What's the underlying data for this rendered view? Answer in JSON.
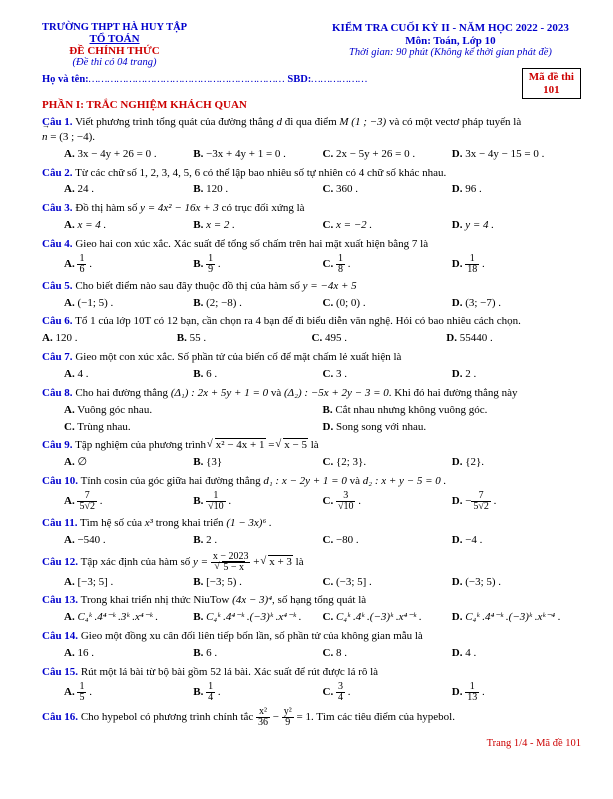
{
  "colors": {
    "blue": "#0000cc",
    "red": "#cc0000",
    "black": "#000000",
    "bg": "#ffffff"
  },
  "fontsizes": {
    "body_pt": 11,
    "small_pt": 10.5
  },
  "header": {
    "school": "TRƯỜNG THPT HÀ HUY TẬP",
    "dept": "TỔ TOÁN",
    "official": "ĐỀ CHÍNH THỨC",
    "pages_note": "(Đề thi có 04 trang)",
    "exam": "KIỂM TRA CUỐI KỲ II - NĂM HỌC 2022 - 2023",
    "subject": "Môn: Toán, Lớp 10",
    "time": "Thời gian: 90 phút (Không kể thời gian phát đề)",
    "name_label": "Họ và tên:",
    "name_dots": "………………………………………………………",
    "sbd_label": "SBD:",
    "sbd_dots": "………………",
    "code_label": "Mã đề thi",
    "code_value": "101"
  },
  "section1_title": "PHẦN I: TRẮC NGHIỆM KHÁCH QUAN",
  "q1": {
    "n": "Câu 1.",
    "txt1": "Viết phương trình tổng quát của đường thẳng ",
    "txt2": " đi qua điểm ",
    "txt3": " và có một vectơ pháp tuyến là",
    "d": "d",
    "M": "M (1 ; −3)",
    "nvec": "n",
    "neq": " = (3 ; −4).",
    "A": "3x − 4y + 26 = 0 .",
    "B": "−3x + 4y + 1 = 0 .",
    "C": "2x − 5y + 26 = 0 .",
    "D": "3x − 4y − 15 = 0 ."
  },
  "q2": {
    "n": "Câu 2.",
    "txt": "Từ các chữ số 1, 2, 3, 4, 5, 6 có thể lập bao nhiêu số tự nhiên có 4 chữ số khác nhau.",
    "A": "24 .",
    "B": "120 .",
    "C": "360 .",
    "D": "96 ."
  },
  "q3": {
    "n": "Câu 3.",
    "txt1": "Đồ thị hàm số ",
    "eq": "y = 4x² − 16x + 3",
    "txt2": " có trục đối xứng là",
    "A": "x = 4 .",
    "B": "x = 2 .",
    "C": "x = −2 .",
    "D": "y = 4 ."
  },
  "q4": {
    "n": "Câu 4.",
    "txt": "Gieo hai con xúc xắc. Xác suất để tổng số chấm trên hai mặt xuất hiện bằng 7 là",
    "A_n": "1",
    "A_d": "6",
    "B_n": "1",
    "B_d": "9",
    "C_n": "1",
    "C_d": "8",
    "D_n": "1",
    "D_d": "18"
  },
  "q5": {
    "n": "Câu 5.",
    "txt1": "Cho biết điểm nào sau đây thuộc đồ thị của hàm số ",
    "eq": "y = −4x + 5",
    "A": "(−1; 5) .",
    "B": "(2; −8) .",
    "C": "(0; 0) .",
    "D": "(3; −7) ."
  },
  "q6": {
    "n": "Câu 6.",
    "txt": "Tổ 1 của lớp 10T có 12 bạn, cần chọn ra 4 bạn để đi biểu diễn văn nghệ. Hỏi có bao nhiêu cách chọn.",
    "A": "120 .",
    "B": "55 .",
    "C": "495 .",
    "D": "55440 ."
  },
  "q7": {
    "n": "Câu 7.",
    "txt": "Gieo một con xúc xắc. Số phần tử của biến cố để mặt chấm lẻ xuất hiện là",
    "A": "4 .",
    "B": "6 .",
    "C": "3 .",
    "D": "2 ."
  },
  "q8": {
    "n": "Câu 8.",
    "txt1": "Cho hai đường thẳng ",
    "d1": "(Δ₁) : 2x + 5y + 1 = 0",
    "and": " và ",
    "d2": "(Δ₂) : −5x + 2y − 3 = 0",
    "txt2": ". Khi đó hai đường thẳng này",
    "A": "Vuông góc nhau.",
    "B": "Cắt nhau nhưng không vuông góc.",
    "C": "Trùng nhau.",
    "D": "Song song với nhau."
  },
  "q9": {
    "n": "Câu 9.",
    "txt1": "Tập nghiệm của phương trình ",
    "rad1": "x² − 4x + 1",
    "eq": " = ",
    "rad2": "x − 5",
    "txt2": " là",
    "A": "∅",
    "B": "{3}",
    "C": "{2; 3}.",
    "D": "{2}."
  },
  "q10": {
    "n": "Câu 10.",
    "txt1": "Tính cosin của góc giữa hai đường thẳng ",
    "d1": "d₁ : x − 2y + 1 = 0",
    "and": " và ",
    "d2": "d₂ : x + y − 5 = 0 .",
    "A_n": "7",
    "A_d": "5√2",
    "B_n": "1",
    "B_d": "√10",
    "C_n": "3",
    "C_d": "√10",
    "D_n": "7",
    "D_d": "5√2",
    "D_neg": "−"
  },
  "q11": {
    "n": "Câu 11.",
    "txt1": "Tìm hệ số của ",
    "x3": "x³",
    "txt2": " trong khai triển ",
    "expr": "(1 − 3x)⁶ .",
    "A": "−540 .",
    "B": "2 .",
    "C": "−80 .",
    "D": "−4 ."
  },
  "q12": {
    "n": "Câu 12.",
    "txt1": "Tập xác định của hàm số ",
    "pre": "y = ",
    "num": "x − 2023",
    "den": "5 − x",
    "plus": " + ",
    "rad": "x + 3",
    "txt2": " là",
    "A": "[−3; 5] .",
    "B": "[−3; 5) .",
    "C": "(−3; 5] .",
    "D": "(−3; 5) ."
  },
  "q13": {
    "n": "Câu 13.",
    "txt1": "Trong khai triển nhị thức NiuTow ",
    "expr": "(4x − 3)⁴",
    "txt2": ", số hạng tổng quát là",
    "A": "C₄ᵏ .4⁴⁻ᵏ .3ᵏ .x⁴⁻ᵏ .",
    "B": "C₄ᵏ .4⁴⁻ᵏ .(−3)ᵏ .x⁴⁻ᵏ .",
    "C": "C₄ᵏ .4ᵏ .(−3)ᵏ .x⁴⁻ᵏ .",
    "D": "C₄ᵏ .4⁴⁻ᵏ .(−3)ᵏ .xᵏ⁻⁴ ."
  },
  "q14": {
    "n": "Câu 14.",
    "txt": "Gieo một đồng xu cân đối liên tiếp bốn lần, số phần tử của không gian mẫu là",
    "A": "16 .",
    "B": "6 .",
    "C": "8 .",
    "D": "4 ."
  },
  "q15": {
    "n": "Câu 15.",
    "txt": "Rút một lá bài từ bộ bài gồm 52 lá bài. Xác suất để rút được lá rô là",
    "A_n": "1",
    "A_d": "5",
    "B_n": "1",
    "B_d": "4",
    "C_n": "3",
    "C_d": "4",
    "D_n": "1",
    "D_d": "13"
  },
  "q16": {
    "n": "Câu 16.",
    "txt1": "Cho hypebol có phương trình chính tắc ",
    "n1": "x²",
    "d1": "36",
    "minus": " − ",
    "n2": "y²",
    "d2": "9",
    "eq": " = 1",
    "txt2": ". Tìm các tiêu điểm của hypebol."
  },
  "footer": "Trang 1/4 - Mã đề 101"
}
